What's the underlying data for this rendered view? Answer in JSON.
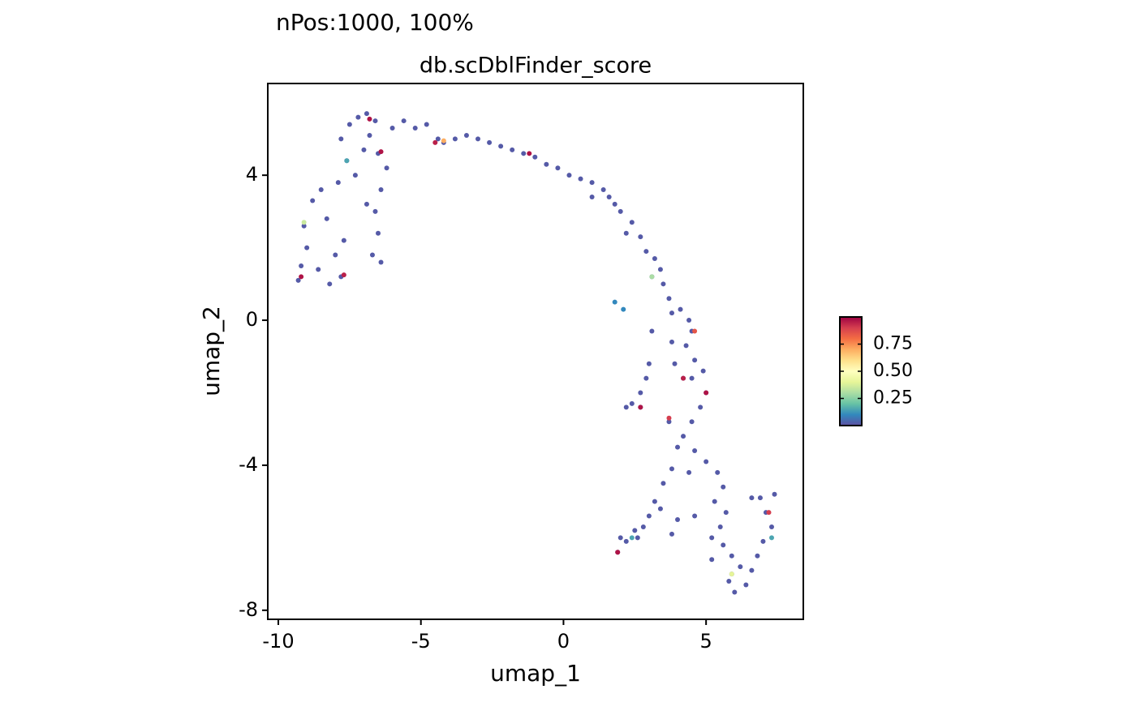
{
  "chart_data": {
    "type": "scatter",
    "subtitle": "nPos:1000, 100%",
    "title": "db.scDblFinder_score",
    "x_label": "umap_1",
    "y_label": "umap_2",
    "xlim": [
      -10.37,
      8.41
    ],
    "ylim": [
      -8.25,
      6.53
    ],
    "xticks": [
      -10,
      -5,
      0,
      5
    ],
    "yticks": [
      -8,
      -4,
      0,
      4
    ],
    "colorscale": [
      "#5E4FA2",
      "#3288BD",
      "#66C2A5",
      "#ABDDA4",
      "#E6F598",
      "#FFFFBF",
      "#FEE08B",
      "#FDAE61",
      "#F46D43",
      "#D53E4F",
      "#9E0142"
    ],
    "colorbar": {
      "lim": [
        0,
        1
      ],
      "ticks": [
        0.25,
        {
          "value": 0.5,
          "label": "0.50"
        },
        0.75
      ]
    },
    "x": [
      -9.3,
      -9.2,
      -9.0,
      -9.1,
      -8.8,
      -8.5,
      -8.3,
      -8.6,
      -8.2,
      -7.8,
      -8.0,
      -7.7,
      -7.9,
      -7.6,
      -7.8,
      -7.5,
      -7.2,
      -6.9,
      -6.6,
      -6.8,
      -6.5,
      -6.2,
      -6.4,
      -6.6,
      -6.5,
      -6.7,
      -6.4,
      -7.0,
      -7.3,
      -6.9,
      -6.0,
      -5.6,
      -5.2,
      -4.8,
      -4.4,
      -4.2,
      -3.8,
      -3.4,
      -3.0,
      -2.6,
      -2.2,
      -1.8,
      -1.4,
      -1.0,
      -0.6,
      -0.2,
      0.2,
      0.6,
      1.0,
      1.4,
      1.0,
      1.6,
      1.8,
      2.0,
      2.4,
      2.2,
      2.7,
      2.9,
      3.2,
      3.4,
      3.1,
      3.5,
      3.7,
      3.8,
      4.1,
      4.4,
      4.5,
      4.3,
      4.6,
      4.9,
      4.5,
      4.2,
      5.0,
      4.8,
      4.5,
      4.2,
      4.0,
      4.6,
      5.0,
      4.4,
      3.8,
      3.5,
      3.2,
      3.0,
      2.8,
      2.6,
      2.2,
      1.9,
      2.0,
      2.5,
      3.4,
      5.4,
      5.6,
      5.3,
      5.7,
      5.5,
      5.2,
      5.6,
      5.9,
      6.2,
      5.8,
      6.0,
      6.4,
      6.6,
      6.8,
      7.0,
      7.3,
      7.1,
      6.9,
      7.4,
      6.6,
      5.9,
      5.2,
      1.8,
      2.1,
      3.1,
      3.0,
      2.9,
      2.7,
      2.4,
      2.2,
      2.7,
      3.8,
      3.9,
      3.7,
      4.0,
      3.8,
      4.6,
      -9.2,
      -7.7,
      -6.8,
      -6.4,
      -4.5,
      -4.2,
      -1.2,
      4.6,
      4.2,
      5.0,
      3.7,
      1.9,
      2.7,
      7.2,
      5.9,
      2.4,
      7.3,
      -9.1,
      -7.6,
      3.1
    ],
    "y": [
      1.1,
      1.5,
      2.0,
      2.6,
      3.3,
      3.6,
      2.8,
      1.4,
      1.0,
      1.2,
      1.8,
      2.2,
      3.8,
      4.4,
      5.0,
      5.4,
      5.6,
      5.7,
      5.5,
      5.1,
      4.6,
      4.2,
      3.6,
      3.0,
      2.4,
      1.8,
      1.6,
      4.7,
      4.0,
      3.2,
      5.3,
      5.5,
      5.3,
      5.4,
      5.0,
      4.9,
      5.0,
      5.1,
      5.0,
      4.9,
      4.8,
      4.7,
      4.6,
      4.5,
      4.3,
      4.2,
      4.0,
      3.9,
      3.8,
      3.6,
      3.4,
      3.4,
      3.2,
      3.0,
      2.7,
      2.4,
      2.3,
      1.9,
      1.7,
      1.4,
      1.2,
      1.0,
      0.6,
      0.2,
      0.3,
      0.0,
      -0.3,
      -0.7,
      -1.1,
      -1.4,
      -1.6,
      -1.6,
      -2.0,
      -2.4,
      -2.8,
      -3.2,
      -3.5,
      -3.6,
      -3.9,
      -4.2,
      -4.1,
      -4.5,
      -5.0,
      -5.4,
      -5.7,
      -6.0,
      -6.1,
      -6.4,
      -6.0,
      -5.8,
      -5.2,
      -4.2,
      -4.6,
      -5.0,
      -5.3,
      -5.7,
      -6.0,
      -6.2,
      -6.5,
      -6.8,
      -7.2,
      -7.5,
      -7.3,
      -6.9,
      -6.5,
      -6.1,
      -5.7,
      -5.3,
      -4.9,
      -4.8,
      -4.9,
      -7.0,
      -6.6,
      0.5,
      0.3,
      -0.3,
      -1.2,
      -1.6,
      -2.0,
      -2.3,
      -2.4,
      -2.4,
      -0.6,
      -1.2,
      -2.8,
      -5.5,
      -5.9,
      -5.4,
      1.2,
      1.25,
      5.55,
      4.65,
      4.9,
      4.95,
      4.6,
      -0.3,
      -1.6,
      -2.0,
      -2.7,
      -6.4,
      -2.4,
      -5.3,
      -7.0,
      -6.0,
      -6.0,
      2.7,
      4.4,
      1.2
    ],
    "values": [
      0.02,
      0.02,
      0.02,
      0.02,
      0.02,
      0.02,
      0.02,
      0.02,
      0.02,
      0.02,
      0.02,
      0.02,
      0.02,
      0.02,
      0.02,
      0.02,
      0.02,
      0.02,
      0.02,
      0.02,
      0.02,
      0.02,
      0.02,
      0.02,
      0.02,
      0.02,
      0.02,
      0.02,
      0.02,
      0.02,
      0.02,
      0.02,
      0.02,
      0.02,
      0.02,
      0.02,
      0.02,
      0.02,
      0.02,
      0.02,
      0.02,
      0.02,
      0.02,
      0.02,
      0.02,
      0.02,
      0.02,
      0.02,
      0.02,
      0.02,
      0.02,
      0.02,
      0.02,
      0.02,
      0.02,
      0.02,
      0.02,
      0.02,
      0.02,
      0.02,
      0.02,
      0.02,
      0.02,
      0.02,
      0.02,
      0.02,
      0.02,
      0.02,
      0.02,
      0.02,
      0.02,
      0.02,
      0.02,
      0.02,
      0.02,
      0.02,
      0.02,
      0.02,
      0.02,
      0.02,
      0.02,
      0.02,
      0.02,
      0.02,
      0.02,
      0.02,
      0.02,
      0.02,
      0.02,
      0.02,
      0.02,
      0.02,
      0.02,
      0.02,
      0.02,
      0.02,
      0.02,
      0.02,
      0.02,
      0.02,
      0.02,
      0.02,
      0.02,
      0.02,
      0.02,
      0.02,
      0.02,
      0.02,
      0.02,
      0.02,
      0.02,
      0.02,
      0.02,
      0.1,
      0.1,
      0.02,
      0.02,
      0.02,
      0.02,
      0.02,
      0.02,
      0.02,
      0.02,
      0.02,
      0.02,
      0.02,
      0.02,
      0.02,
      0.97,
      0.95,
      0.97,
      0.97,
      0.95,
      0.7,
      0.97,
      0.85,
      0.95,
      0.97,
      0.9,
      0.97,
      0.97,
      0.9,
      0.4,
      0.15,
      0.15,
      0.35,
      0.15,
      0.3
    ]
  }
}
